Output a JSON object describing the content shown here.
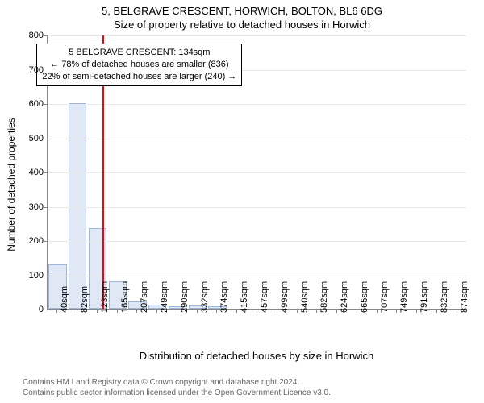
{
  "title": "5, BELGRAVE CRESCENT, HORWICH, BOLTON, BL6 6DG",
  "subtitle": "Size of property relative to detached houses in Horwich",
  "chart": {
    "type": "histogram",
    "ylabel": "Number of detached properties",
    "xlabel": "Distribution of detached houses by size in Horwich",
    "ylim": [
      0,
      800
    ],
    "ytick_step": 100,
    "label_fontsize": 12,
    "tick_fontsize": 11,
    "background_color": "#ffffff",
    "grid_color": "#e8e8e8",
    "axis_color": "#888888",
    "bar_fill": "#e0e8f5",
    "bar_stroke": "#9db5d8",
    "bar_width": 0.9,
    "categories": [
      "40sqm",
      "82sqm",
      "123sqm",
      "165sqm",
      "207sqm",
      "249sqm",
      "290sqm",
      "332sqm",
      "374sqm",
      "415sqm",
      "457sqm",
      "499sqm",
      "540sqm",
      "582sqm",
      "624sqm",
      "665sqm",
      "707sqm",
      "749sqm",
      "791sqm",
      "832sqm",
      "874sqm"
    ],
    "values": [
      130,
      600,
      235,
      80,
      22,
      12,
      8,
      10,
      8,
      0,
      0,
      0,
      0,
      0,
      0,
      0,
      0,
      0,
      0,
      0,
      0
    ],
    "reference_line": {
      "bin_position": 2.25,
      "value_label": "134sqm",
      "color": "#ff0000",
      "width": 2
    },
    "annotation": {
      "lines": [
        "5 BELGRAVE CRESCENT: 134sqm",
        "← 78% of detached houses are smaller (836)",
        "22% of semi-detached houses are larger (240) →"
      ],
      "border_color": "#000000",
      "background": "#ffffff",
      "fontsize": 11,
      "position_bin": 4.2,
      "position_y": 720
    }
  },
  "footer": {
    "line1": "Contains HM Land Registry data © Crown copyright and database right 2024.",
    "line2": "Contains public sector information licensed under the Open Government Licence v3.0.",
    "color": "#666666",
    "fontsize": 10
  }
}
